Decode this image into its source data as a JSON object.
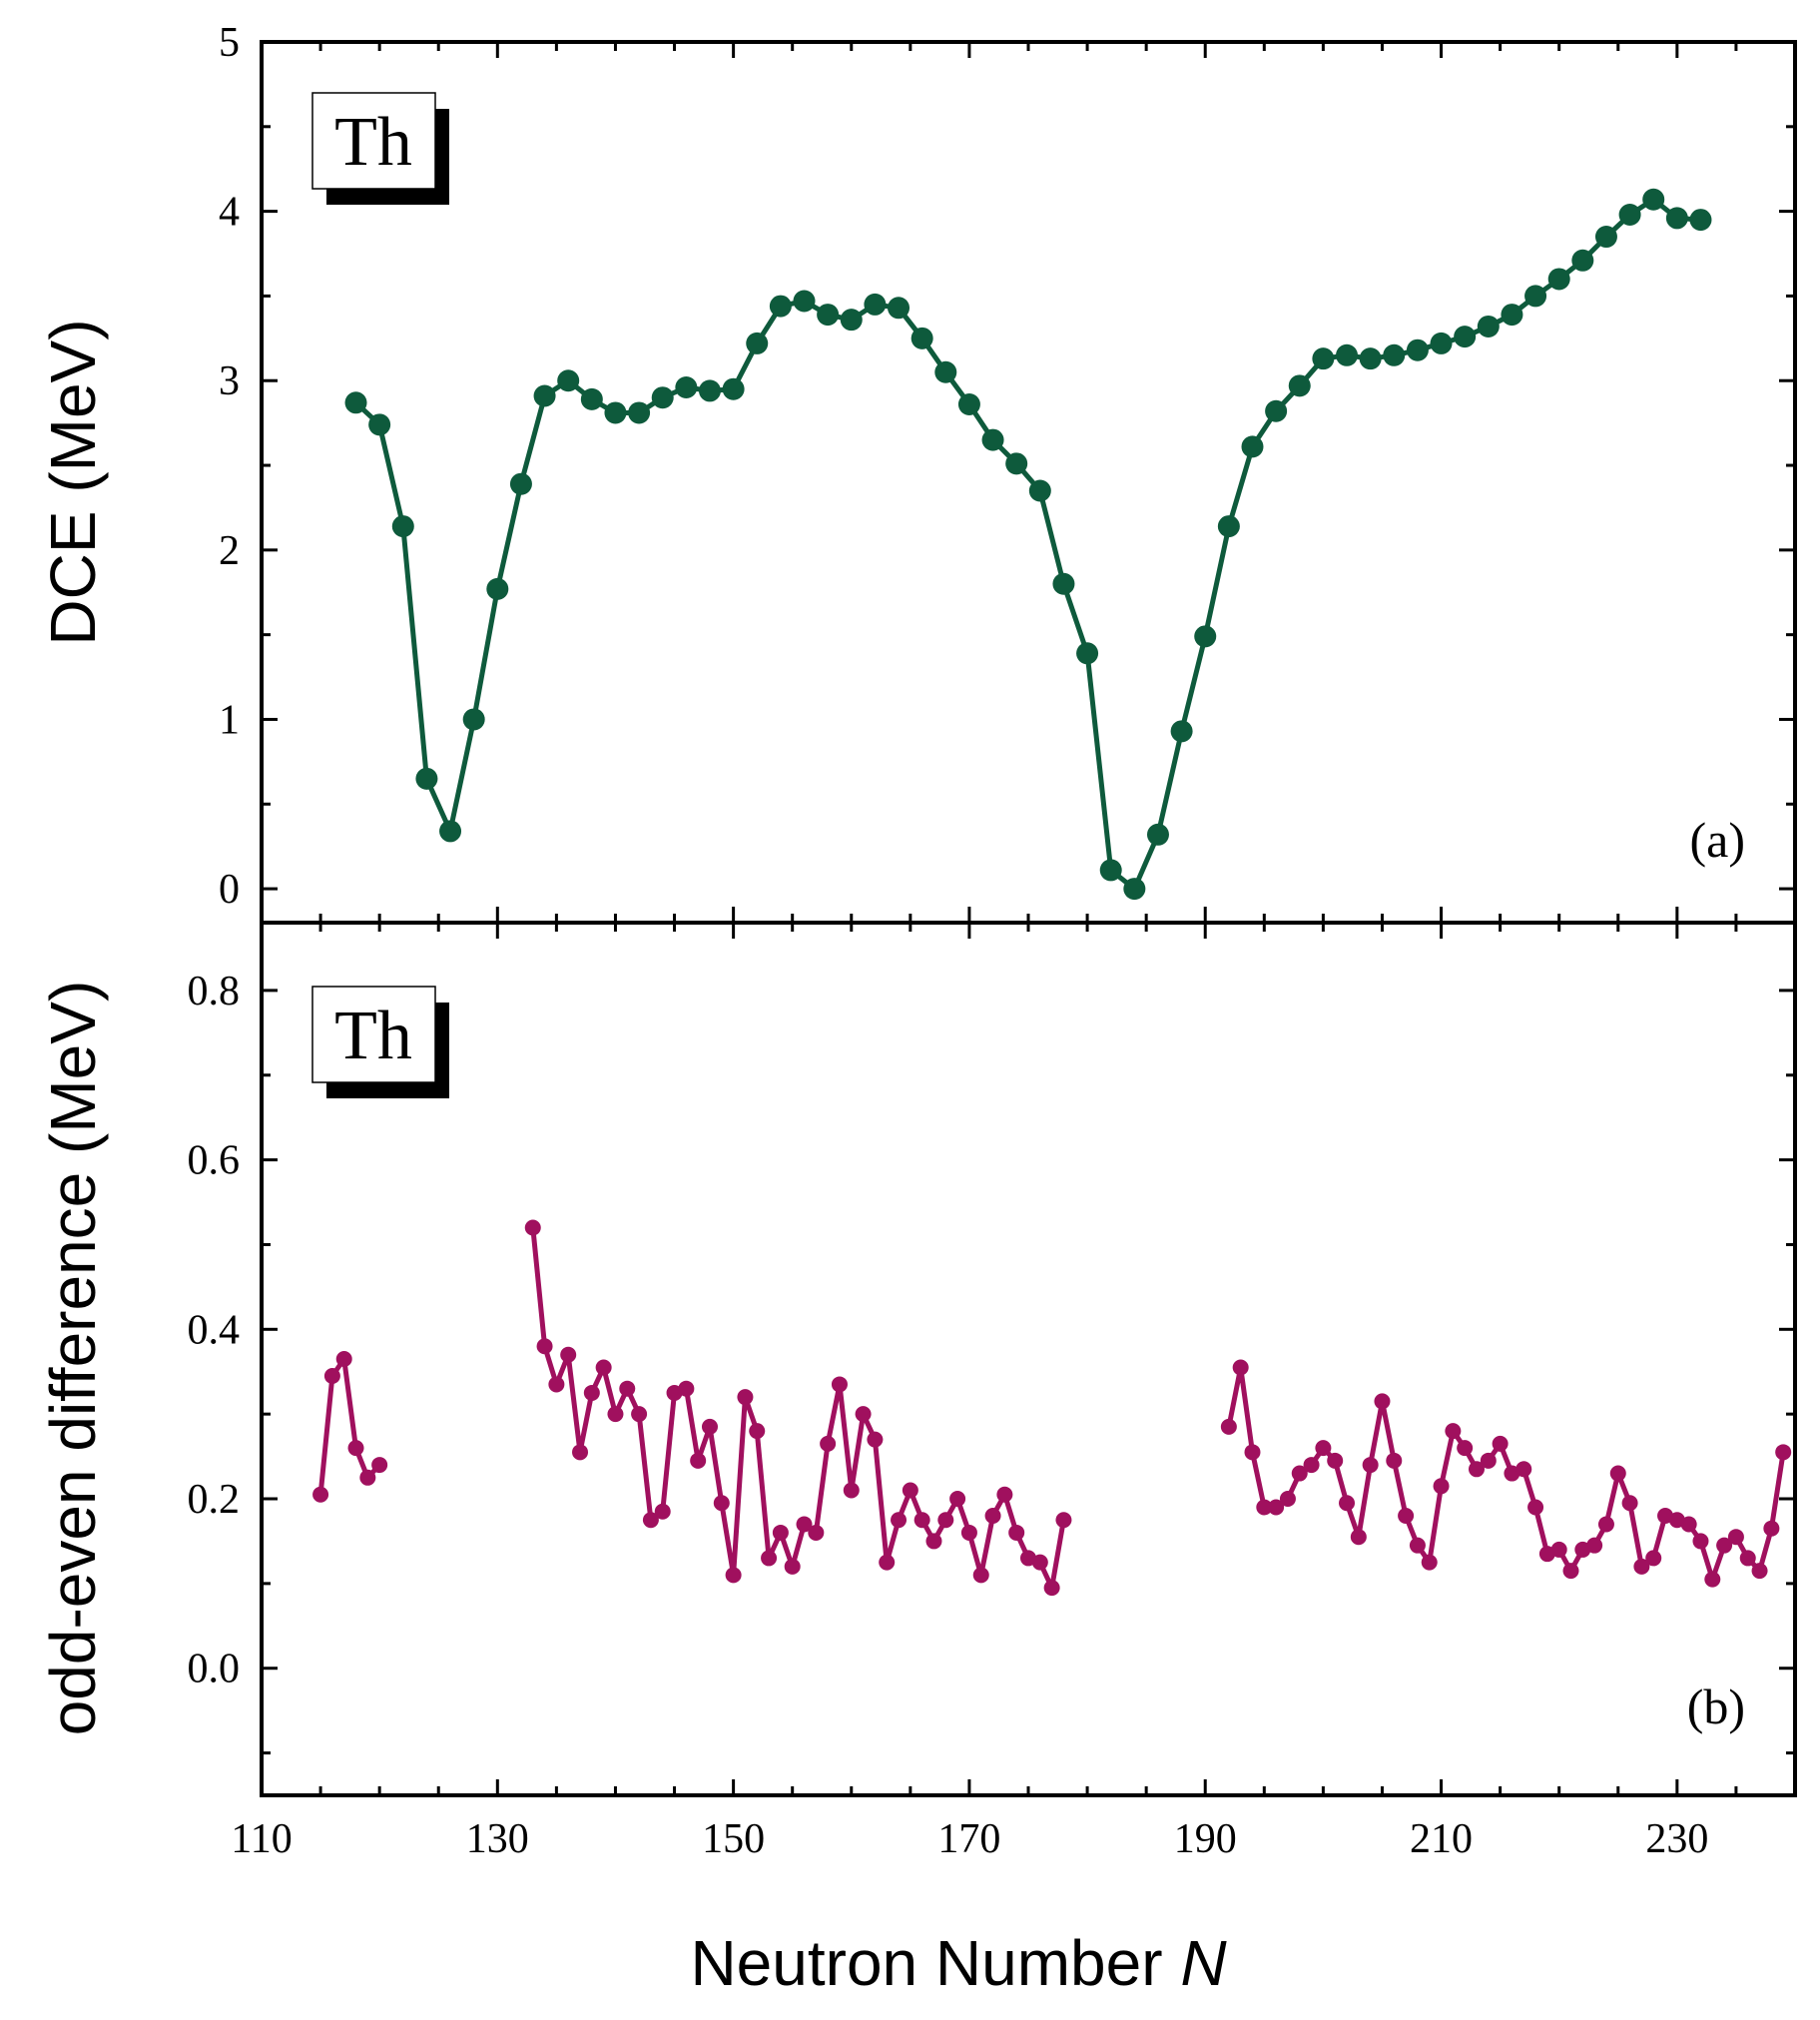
{
  "chart_data": [
    {
      "type": "line",
      "panel_label": "(a)",
      "element_label": "Th",
      "xlabel_parts": [
        "Neutron Number ",
        "N"
      ],
      "ylabel": "DCE (MeV)",
      "xlim": [
        110,
        240
      ],
      "ylim": [
        -0.2,
        5
      ],
      "xticks": [
        110,
        130,
        150,
        170,
        190,
        210,
        230
      ],
      "yticks": [
        0,
        1,
        2,
        3,
        4,
        5
      ],
      "ytick_labels": [
        "0",
        "1",
        "2",
        "3",
        "4",
        "5"
      ],
      "color": "#0e5a3c",
      "series": [
        {
          "name": "Th DCE",
          "points": [
            [
              118,
              2.87
            ],
            [
              120,
              2.74
            ],
            [
              122,
              2.14
            ],
            [
              124,
              0.65
            ],
            [
              126,
              0.34
            ],
            [
              128,
              1.0
            ],
            [
              130,
              1.77
            ],
            [
              132,
              2.39
            ],
            [
              134,
              2.91
            ],
            [
              136,
              3.0
            ],
            [
              138,
              2.89
            ],
            [
              140,
              2.81
            ],
            [
              142,
              2.81
            ],
            [
              144,
              2.9
            ],
            [
              146,
              2.96
            ],
            [
              148,
              2.94
            ],
            [
              150,
              2.95
            ],
            [
              152,
              3.22
            ],
            [
              154,
              3.44
            ],
            [
              156,
              3.47
            ],
            [
              158,
              3.39
            ],
            [
              160,
              3.36
            ],
            [
              162,
              3.45
            ],
            [
              164,
              3.43
            ],
            [
              166,
              3.25
            ],
            [
              168,
              3.05
            ],
            [
              170,
              2.86
            ],
            [
              172,
              2.65
            ],
            [
              174,
              2.51
            ],
            [
              176,
              2.35
            ],
            [
              178,
              1.8
            ],
            [
              180,
              1.39
            ],
            [
              182,
              0.11
            ],
            [
              184,
              0.0
            ],
            [
              186,
              0.32
            ],
            [
              188,
              0.93
            ],
            [
              190,
              1.49
            ],
            [
              192,
              2.14
            ],
            [
              194,
              2.61
            ],
            [
              196,
              2.82
            ],
            [
              198,
              2.97
            ],
            [
              200,
              3.13
            ],
            [
              202,
              3.15
            ],
            [
              204,
              3.13
            ],
            [
              206,
              3.15
            ],
            [
              208,
              3.18
            ],
            [
              210,
              3.22
            ],
            [
              212,
              3.26
            ],
            [
              214,
              3.32
            ],
            [
              216,
              3.39
            ],
            [
              218,
              3.5
            ],
            [
              220,
              3.6
            ],
            [
              222,
              3.71
            ],
            [
              224,
              3.85
            ],
            [
              226,
              3.98
            ],
            [
              228,
              4.07
            ],
            [
              230,
              3.96
            ],
            [
              232,
              3.95
            ]
          ]
        }
      ]
    },
    {
      "type": "line",
      "panel_label": "(b)",
      "element_label": "Th",
      "ylabel": "odd-even difference (MeV)",
      "xlim": [
        110,
        240
      ],
      "ylim": [
        -0.15,
        0.88
      ],
      "xticks": [
        110,
        130,
        150,
        170,
        190,
        210,
        230
      ],
      "yticks": [
        0.0,
        0.2,
        0.4,
        0.6,
        0.8
      ],
      "ytick_labels": [
        "0.0",
        "0.2",
        "0.4",
        "0.6",
        "0.8"
      ],
      "color": "#a0105e",
      "series": [
        {
          "name": "segment 1",
          "points": [
            [
              115,
              0.205
            ],
            [
              116,
              0.345
            ],
            [
              117,
              0.365
            ],
            [
              118,
              0.26
            ],
            [
              119,
              0.225
            ],
            [
              120,
              0.24
            ]
          ]
        },
        {
          "name": "segment 2",
          "points": [
            [
              133,
              0.52
            ],
            [
              134,
              0.38
            ],
            [
              135,
              0.335
            ],
            [
              136,
              0.37
            ],
            [
              137,
              0.255
            ],
            [
              138,
              0.325
            ],
            [
              139,
              0.355
            ],
            [
              140,
              0.3
            ],
            [
              141,
              0.33
            ],
            [
              142,
              0.3
            ],
            [
              143,
              0.175
            ],
            [
              144,
              0.185
            ],
            [
              145,
              0.325
            ],
            [
              146,
              0.33
            ],
            [
              147,
              0.245
            ],
            [
              148,
              0.285
            ],
            [
              149,
              0.195
            ],
            [
              150,
              0.11
            ],
            [
              151,
              0.32
            ],
            [
              152,
              0.28
            ],
            [
              153,
              0.13
            ],
            [
              154,
              0.16
            ],
            [
              155,
              0.12
            ],
            [
              156,
              0.17
            ],
            [
              157,
              0.16
            ],
            [
              158,
              0.265
            ],
            [
              159,
              0.335
            ],
            [
              160,
              0.21
            ],
            [
              161,
              0.3
            ],
            [
              162,
              0.27
            ],
            [
              163,
              0.125
            ],
            [
              164,
              0.175
            ],
            [
              165,
              0.21
            ],
            [
              166,
              0.175
            ],
            [
              167,
              0.15
            ],
            [
              168,
              0.175
            ],
            [
              169,
              0.2
            ],
            [
              170,
              0.16
            ],
            [
              171,
              0.11
            ],
            [
              172,
              0.18
            ],
            [
              173,
              0.205
            ],
            [
              174,
              0.16
            ],
            [
              175,
              0.13
            ],
            [
              176,
              0.125
            ],
            [
              177,
              0.095
            ],
            [
              178,
              0.175
            ]
          ]
        },
        {
          "name": "segment 3",
          "points": [
            [
              192,
              0.285
            ],
            [
              193,
              0.355
            ],
            [
              194,
              0.255
            ],
            [
              195,
              0.19
            ],
            [
              196,
              0.19
            ],
            [
              197,
              0.2
            ],
            [
              198,
              0.23
            ],
            [
              199,
              0.24
            ],
            [
              200,
              0.26
            ],
            [
              201,
              0.245
            ],
            [
              202,
              0.195
            ],
            [
              203,
              0.155
            ],
            [
              204,
              0.24
            ],
            [
              205,
              0.315
            ],
            [
              206,
              0.245
            ],
            [
              207,
              0.18
            ],
            [
              208,
              0.145
            ],
            [
              209,
              0.125
            ],
            [
              210,
              0.215
            ],
            [
              211,
              0.28
            ],
            [
              212,
              0.26
            ],
            [
              213,
              0.235
            ],
            [
              214,
              0.245
            ],
            [
              215,
              0.265
            ],
            [
              216,
              0.23
            ],
            [
              217,
              0.235
            ],
            [
              218,
              0.19
            ],
            [
              219,
              0.135
            ],
            [
              220,
              0.14
            ],
            [
              221,
              0.115
            ],
            [
              222,
              0.14
            ],
            [
              223,
              0.145
            ],
            [
              224,
              0.17
            ],
            [
              225,
              0.23
            ],
            [
              226,
              0.195
            ],
            [
              227,
              0.12
            ],
            [
              228,
              0.13
            ],
            [
              229,
              0.18
            ],
            [
              230,
              0.175
            ],
            [
              231,
              0.17
            ],
            [
              232,
              0.15
            ],
            [
              233,
              0.105
            ],
            [
              234,
              0.145
            ],
            [
              235,
              0.155
            ],
            [
              236,
              0.13
            ],
            [
              237,
              0.115
            ],
            [
              238,
              0.165
            ],
            [
              239,
              0.255
            ]
          ]
        }
      ]
    }
  ]
}
